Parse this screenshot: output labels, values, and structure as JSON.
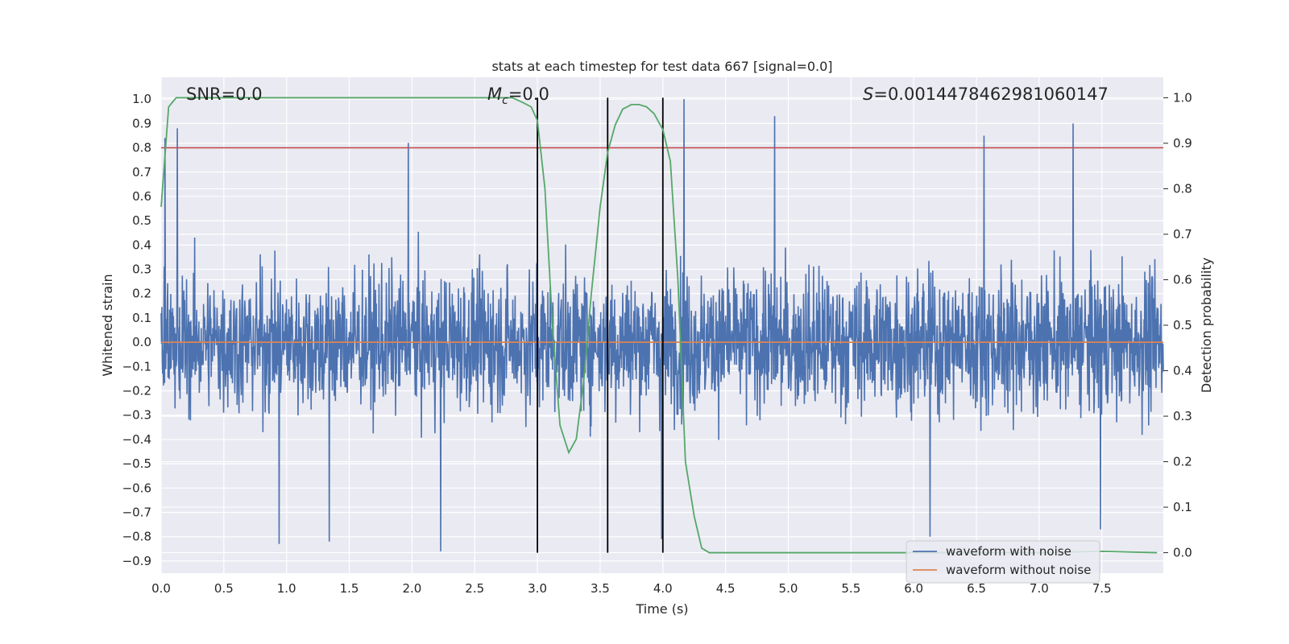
{
  "chart_data": {
    "type": "line",
    "title": "stats at each timestep for test data 667 [signal=0.0]",
    "xlabel": "Time (s)",
    "ylabel": "Whitened strain",
    "y2label": "Detection probability",
    "xlim": [
      0.0,
      7.99
    ],
    "ylim": [
      -0.95,
      1.09
    ],
    "y2lim": [
      -0.045,
      1.045
    ],
    "x_ticks": [
      "0.0",
      "0.5",
      "1.0",
      "1.5",
      "2.0",
      "2.5",
      "3.0",
      "3.5",
      "4.0",
      "4.5",
      "5.0",
      "5.5",
      "6.0",
      "6.5",
      "7.0",
      "7.5"
    ],
    "y_ticks": [
      "1.0",
      "0.9",
      "0.8",
      "0.7",
      "0.6",
      "0.5",
      "0.4",
      "0.3",
      "0.2",
      "0.1",
      "0.0",
      "−0.1",
      "−0.2",
      "−0.3",
      "−0.4",
      "−0.5",
      "−0.6",
      "−0.7",
      "−0.8",
      "−0.9"
    ],
    "y2_ticks": [
      "1.0",
      "0.9",
      "0.8",
      "0.7",
      "0.6",
      "0.5",
      "0.4",
      "0.3",
      "0.2",
      "0.1",
      "0.0"
    ],
    "annotations": {
      "snr": "SNR=0.0",
      "mc_symbol": "M",
      "mc_sub": "c",
      "mc_value": "=0.0",
      "s_symbol": "S",
      "s_value": "=0.0014478462981060147"
    },
    "threshold_line": {
      "y": 0.8,
      "color": "#c44e52"
    },
    "vertical_markers": {
      "x": [
        3.0,
        3.56,
        4.0
      ],
      "y2_range": [
        0.0,
        1.0
      ],
      "color": "#000000"
    },
    "series": [
      {
        "name": "waveform with noise",
        "color": "#4c72b0",
        "axis": "left",
        "description": "whitened noise, approx gaussian, typical envelope +/-0.5, peaks near +1.0 / -0.85",
        "envelope": 0.5,
        "peak_events": [
          [
            0.13,
            0.88
          ],
          [
            0.03,
            0.84
          ],
          [
            1.97,
            0.82
          ],
          [
            4.17,
            1.0
          ],
          [
            4.89,
            0.93
          ],
          [
            7.27,
            0.9
          ],
          [
            6.56,
            0.85
          ],
          [
            2.23,
            -0.86
          ],
          [
            0.94,
            -0.83
          ],
          [
            1.34,
            -0.82
          ],
          [
            3.99,
            -0.81
          ],
          [
            6.13,
            -0.8
          ],
          [
            7.49,
            -0.77
          ]
        ]
      },
      {
        "name": "waveform without noise",
        "color": "#dd8452",
        "axis": "left",
        "x": [
          0.0,
          7.99
        ],
        "values": [
          0.0,
          0.0
        ]
      },
      {
        "name": "detection probability",
        "color": "#55a868",
        "axis": "right",
        "x": [
          0.0,
          0.06,
          0.12,
          0.2,
          0.5,
          1.0,
          1.5,
          2.0,
          2.5,
          2.7,
          2.8,
          2.88,
          2.95,
          3.0,
          3.06,
          3.12,
          3.18,
          3.25,
          3.31,
          3.37,
          3.43,
          3.5,
          3.56,
          3.62,
          3.68,
          3.75,
          3.81,
          3.87,
          3.93,
          4.0,
          4.06,
          4.12,
          4.18,
          4.25,
          4.31,
          4.37,
          4.5,
          5.0,
          6.0,
          7.0,
          7.5,
          7.94
        ],
        "values": [
          0.76,
          0.98,
          1.0,
          1.0,
          1.0,
          1.0,
          1.0,
          1.0,
          1.0,
          1.0,
          1.0,
          0.99,
          0.98,
          0.95,
          0.8,
          0.5,
          0.28,
          0.22,
          0.25,
          0.38,
          0.57,
          0.76,
          0.88,
          0.94,
          0.975,
          0.985,
          0.985,
          0.98,
          0.965,
          0.93,
          0.86,
          0.6,
          0.2,
          0.08,
          0.01,
          0.0,
          0.0,
          0.0,
          0.0,
          0.0,
          0.003,
          0.0
        ]
      }
    ],
    "legend": {
      "placement": "bottom-right",
      "entries": [
        "waveform with noise",
        "waveform without noise"
      ]
    }
  }
}
